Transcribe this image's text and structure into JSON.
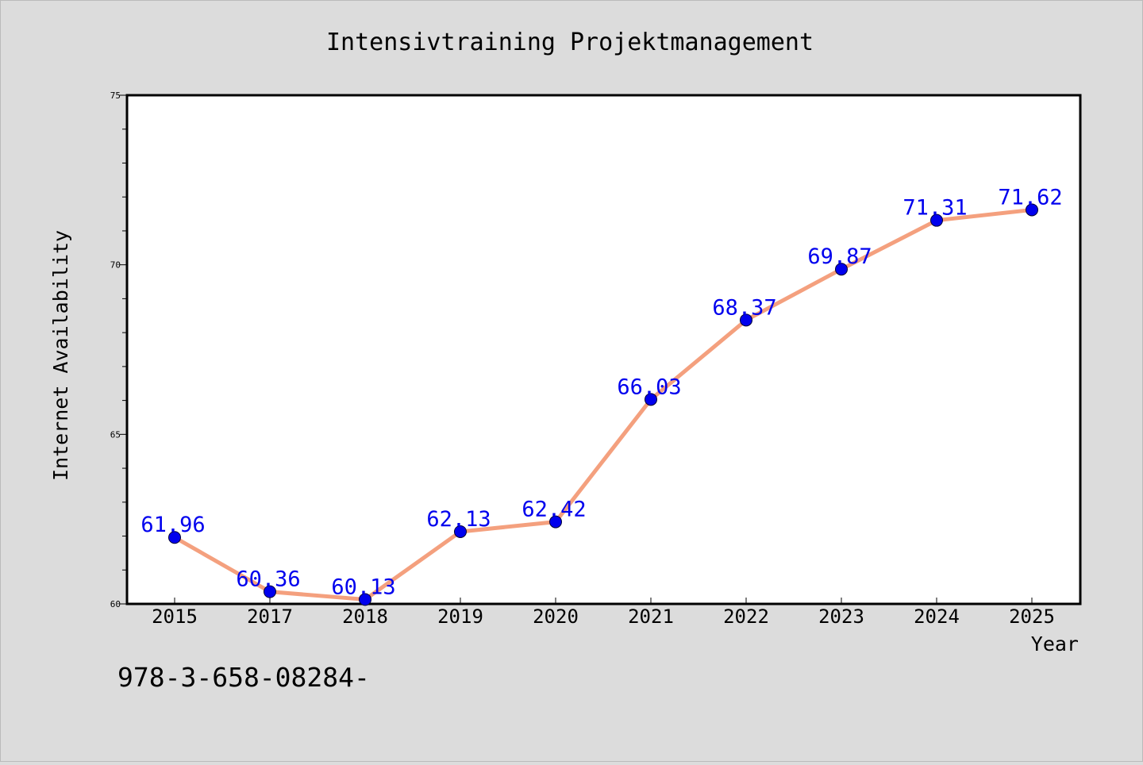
{
  "chart_data": {
    "type": "line",
    "title": "Intensivtraining Projektmanagement",
    "xlabel": "Year",
    "ylabel": "Internet Availability",
    "categories": [
      "2015",
      "2017",
      "2018",
      "2019",
      "2020",
      "2021",
      "2022",
      "2023",
      "2024",
      "2025"
    ],
    "values": [
      61.96,
      60.36,
      60.13,
      62.13,
      62.42,
      66.03,
      68.37,
      69.87,
      71.31,
      71.62
    ],
    "data_labels": [
      "61.96",
      "60.36",
      "60.13",
      "62.13",
      "62.42",
      "66.03",
      "68.37",
      "69.87",
      "71.31",
      "71.62"
    ],
    "ylim": [
      60,
      75
    ],
    "yticks": [
      "60",
      "65",
      "70",
      "75"
    ],
    "grid": false,
    "legend": "none",
    "line_color": "#f4a07e",
    "marker_color": "#0000ee",
    "label_color": "#0000ee",
    "background": "#dcdcdc",
    "plot_background": "#ffffff"
  },
  "footer_text": "978-3-658-08284-"
}
